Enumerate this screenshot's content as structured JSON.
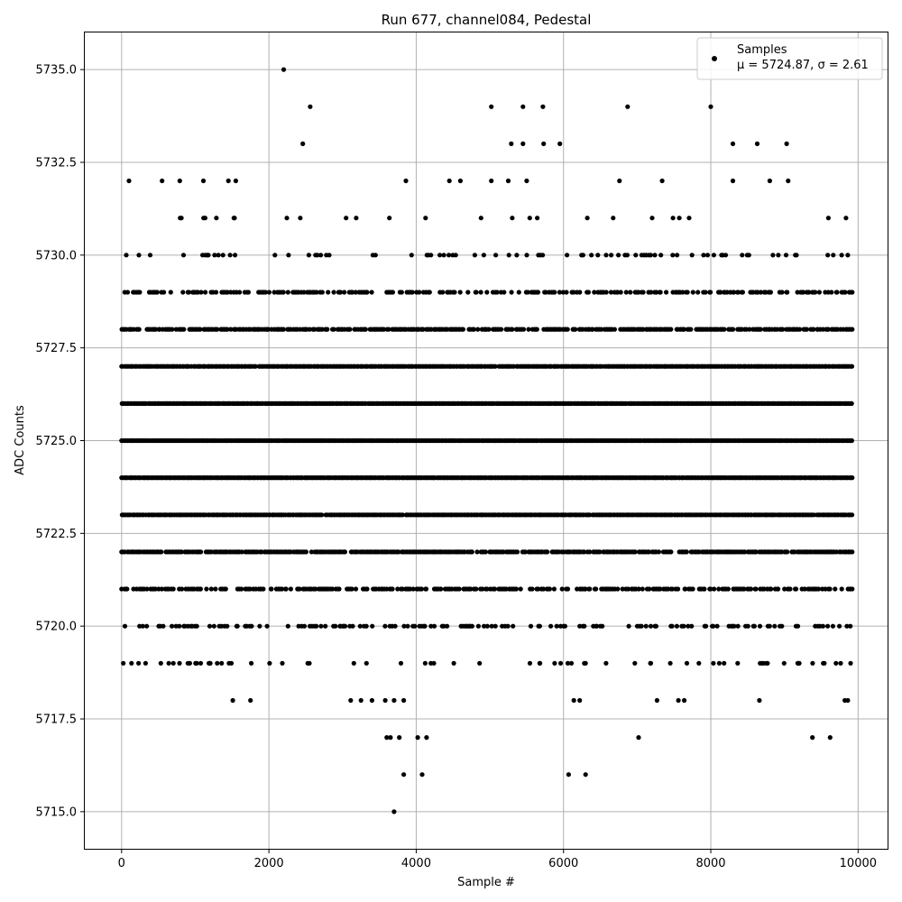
{
  "chart_data": {
    "type": "scatter",
    "title": "Run 677, channel084, Pedestal",
    "xlabel": "Sample #",
    "ylabel": "ADC Counts",
    "xlim": [
      -500,
      10400
    ],
    "ylim": [
      5714,
      5736
    ],
    "x_ticks": [
      0,
      2000,
      4000,
      6000,
      8000,
      10000
    ],
    "x_tick_labels": [
      "0",
      "2000",
      "4000",
      "6000",
      "8000",
      "10000"
    ],
    "y_ticks": [
      5715.0,
      5717.5,
      5720.0,
      5722.5,
      5725.0,
      5727.5,
      5730.0,
      5732.5,
      5735.0
    ],
    "y_tick_labels": [
      "5715.0",
      "5717.5",
      "5720.0",
      "5722.5",
      "5725.0",
      "5727.5",
      "5730.0",
      "5732.5",
      "5735.0"
    ],
    "grid": true,
    "legend": {
      "position": "top-right",
      "label": "Samples",
      "stats": "μ = 5724.87, σ = 2.61"
    },
    "marker_color": "#000000",
    "series": [
      {
        "name": "Samples",
        "stats": {
          "mean": 5724.87,
          "std": 2.61
        },
        "x_range": [
          0,
          9920
        ],
        "points": [
          [
            2200,
            5735
          ],
          [
            3700,
            5715
          ],
          [
            3830,
            5716
          ],
          [
            4080,
            5716
          ],
          [
            6070,
            5716
          ],
          [
            6300,
            5716
          ],
          [
            2560,
            5734
          ],
          [
            5020,
            5734
          ],
          [
            5450,
            5734
          ],
          [
            5720,
            5734
          ],
          [
            6870,
            5734
          ],
          [
            8000,
            5734
          ],
          [
            2460,
            5733
          ],
          [
            5290,
            5733
          ],
          [
            5450,
            5733
          ],
          [
            5730,
            5733
          ],
          [
            5950,
            5733
          ],
          [
            8300,
            5733
          ],
          [
            8630,
            5733
          ],
          [
            9030,
            5733
          ],
          [
            100,
            5732
          ],
          [
            550,
            5732
          ],
          [
            790,
            5732
          ],
          [
            1110,
            5732
          ],
          [
            1450,
            5732
          ],
          [
            1550,
            5732
          ],
          [
            3860,
            5732
          ],
          [
            4450,
            5732
          ],
          [
            4600,
            5732
          ],
          [
            5020,
            5732
          ],
          [
            5250,
            5732
          ],
          [
            5500,
            5732
          ],
          [
            6760,
            5732
          ],
          [
            7340,
            5732
          ],
          [
            8300,
            5732
          ],
          [
            8800,
            5732
          ],
          [
            9050,
            5732
          ],
          [
            3600,
            5717
          ],
          [
            3650,
            5717
          ],
          [
            3770,
            5717
          ],
          [
            4020,
            5717
          ],
          [
            4140,
            5717
          ],
          [
            7020,
            5717
          ],
          [
            9380,
            5717
          ],
          [
            9620,
            5717
          ],
          [
            1510,
            5718
          ],
          [
            1750,
            5718
          ],
          [
            3110,
            5718
          ],
          [
            3250,
            5718
          ],
          [
            3400,
            5718
          ],
          [
            3580,
            5718
          ],
          [
            3700,
            5718
          ],
          [
            3830,
            5718
          ],
          [
            6140,
            5718
          ],
          [
            6220,
            5718
          ],
          [
            7270,
            5718
          ],
          [
            7560,
            5718
          ],
          [
            7640,
            5718
          ],
          [
            8660,
            5718
          ],
          [
            9820,
            5718
          ],
          [
            9860,
            5718
          ],
          [
            230,
            5719
          ],
          [
            640,
            5719
          ],
          [
            900,
            5719
          ],
          [
            1020,
            5719
          ],
          [
            1200,
            5719
          ],
          [
            1490,
            5719
          ],
          [
            2010,
            5719
          ],
          [
            2550,
            5719
          ],
          [
            4510,
            5719
          ],
          [
            4860,
            5719
          ],
          [
            5680,
            5719
          ],
          [
            5880,
            5719
          ],
          [
            6300,
            5719
          ],
          [
            7180,
            5719
          ],
          [
            7450,
            5719
          ],
          [
            8670,
            5719
          ],
          [
            8770,
            5719
          ],
          [
            9180,
            5719
          ],
          [
            9700,
            5719
          ]
        ],
        "levels": [
          {
            "y": 5731,
            "density": 0.05
          },
          {
            "y": 5730,
            "density": 0.2
          },
          {
            "y": 5729,
            "density": 0.45
          },
          {
            "y": 5728,
            "density": 0.75
          },
          {
            "y": 5727,
            "density": 0.98
          },
          {
            "y": 5726,
            "density": 1.0
          },
          {
            "y": 5725,
            "density": 1.0
          },
          {
            "y": 5724,
            "density": 1.0
          },
          {
            "y": 5723,
            "density": 0.98
          },
          {
            "y": 5722,
            "density": 0.85
          },
          {
            "y": 5721,
            "density": 0.55
          },
          {
            "y": 5720,
            "density": 0.3
          },
          {
            "y": 5719,
            "density": 0.1
          }
        ]
      }
    ]
  }
}
